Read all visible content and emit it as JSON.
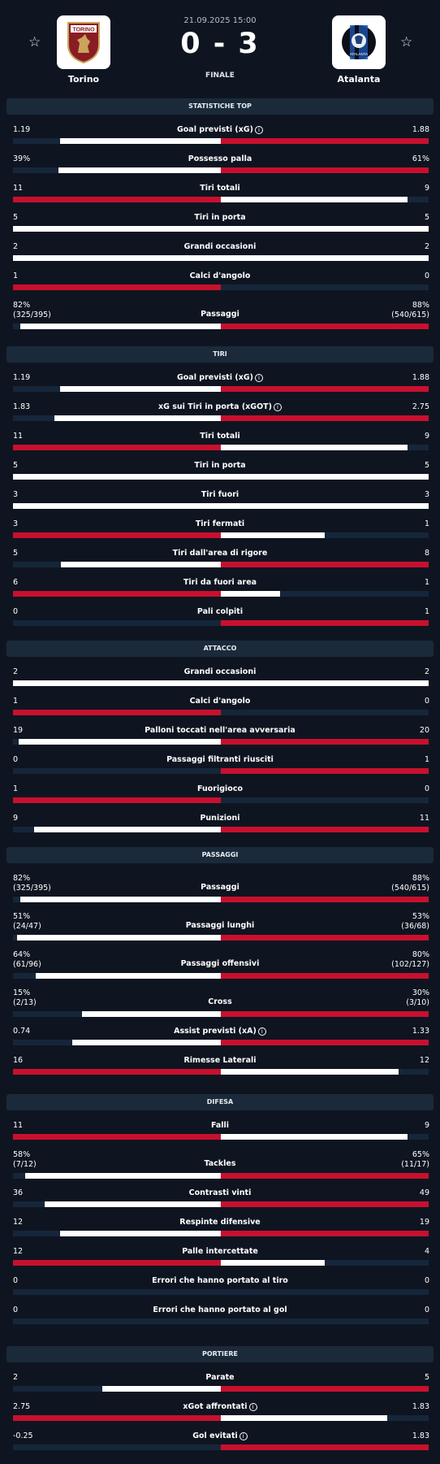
{
  "match": {
    "date": "21.09.2025 15:00",
    "score": "0 - 3",
    "status": "FINALE",
    "home": {
      "name": "Torino",
      "logo_text": "TORINO"
    },
    "away": {
      "name": "Atalanta",
      "logo_text": "ATALANTA"
    },
    "star_glyph": "☆"
  },
  "colors": {
    "white": "#ffffff",
    "red": "#c8102e",
    "track": "#16263a",
    "section": "#1b2a3a"
  },
  "sections": [
    {
      "title": "STATISTICHE TOP",
      "rows": [
        {
          "label": "Goal previsti (xG)",
          "info": true,
          "home": "1.19",
          "away": "1.88",
          "hv": 1.19,
          "av": 1.88
        },
        {
          "label": "Possesso palla",
          "home": "39%",
          "away": "61%",
          "hv": 39,
          "av": 61
        },
        {
          "label": "Tiri totali",
          "home": "11",
          "away": "9",
          "hv": 11,
          "av": 9
        },
        {
          "label": "Tiri in porta",
          "home": "5",
          "away": "5",
          "hv": 5,
          "av": 5
        },
        {
          "label": "Grandi occasioni",
          "home": "2",
          "away": "2",
          "hv": 2,
          "av": 2
        },
        {
          "label": "Calci d'angolo",
          "home": "1",
          "away": "0",
          "hv": 1,
          "av": 0
        },
        {
          "label": "Passaggi",
          "home": "82%",
          "home_sub": "(325/395)",
          "away": "88%",
          "away_sub": "(540/615)",
          "hv": 82,
          "av": 88
        }
      ]
    },
    {
      "title": "TIRI",
      "rows": [
        {
          "label": "Goal previsti (xG)",
          "info": true,
          "home": "1.19",
          "away": "1.88",
          "hv": 1.19,
          "av": 1.88
        },
        {
          "label": "xG sui Tiri in porta (xGOT)",
          "info": true,
          "home": "1.83",
          "away": "2.75",
          "hv": 1.83,
          "av": 2.75
        },
        {
          "label": "Tiri totali",
          "home": "11",
          "away": "9",
          "hv": 11,
          "av": 9
        },
        {
          "label": "Tiri in porta",
          "home": "5",
          "away": "5",
          "hv": 5,
          "av": 5
        },
        {
          "label": "Tiri fuori",
          "home": "3",
          "away": "3",
          "hv": 3,
          "av": 3
        },
        {
          "label": "Tiri fermati",
          "home": "3",
          "away": "1",
          "hv": 3,
          "av": 1
        },
        {
          "label": "Tiri dall'area di rigore",
          "home": "5",
          "away": "8",
          "hv": 5,
          "av": 8
        },
        {
          "label": "Tiri da fuori area",
          "home": "6",
          "away": "1",
          "hv": 6,
          "av": 1
        },
        {
          "label": "Pali colpiti",
          "home": "0",
          "away": "1",
          "hv": 0,
          "av": 1
        }
      ]
    },
    {
      "title": "ATTACCO",
      "rows": [
        {
          "label": "Grandi occasioni",
          "home": "2",
          "away": "2",
          "hv": 2,
          "av": 2
        },
        {
          "label": "Calci d'angolo",
          "home": "1",
          "away": "0",
          "hv": 1,
          "av": 0
        },
        {
          "label": "Palloni toccati nell'area avversaria",
          "home": "19",
          "away": "20",
          "hv": 19,
          "av": 20
        },
        {
          "label": "Passaggi filtranti riusciti",
          "home": "0",
          "away": "1",
          "hv": 0,
          "av": 1
        },
        {
          "label": "Fuorigioco",
          "home": "1",
          "away": "0",
          "hv": 1,
          "av": 0
        },
        {
          "label": "Punizioni",
          "home": "9",
          "away": "11",
          "hv": 9,
          "av": 11
        }
      ]
    },
    {
      "title": "PASSAGGI",
      "rows": [
        {
          "label": "Passaggi",
          "home": "82%",
          "home_sub": "(325/395)",
          "away": "88%",
          "away_sub": "(540/615)",
          "hv": 82,
          "av": 88
        },
        {
          "label": "Passaggi lunghi",
          "home": "51%",
          "home_sub": "(24/47)",
          "away": "53%",
          "away_sub": "(36/68)",
          "hv": 51,
          "av": 53
        },
        {
          "label": "Passaggi offensivi",
          "home": "64%",
          "home_sub": "(61/96)",
          "away": "80%",
          "away_sub": "(102/127)",
          "hv": 64,
          "av": 80
        },
        {
          "label": "Cross",
          "home": "15%",
          "home_sub": "(2/13)",
          "away": "30%",
          "away_sub": "(3/10)",
          "hv": 15,
          "av": 30
        },
        {
          "label": "Assist previsti (xA)",
          "info": true,
          "home": "0.74",
          "away": "1.33",
          "hv": 0.74,
          "av": 1.33
        },
        {
          "label": "Rimesse Laterali",
          "home": "16",
          "away": "12",
          "hv": 16,
          "av": 12
        }
      ]
    },
    {
      "title": "DIFESA",
      "rows": [
        {
          "label": "Falli",
          "home": "11",
          "away": "9",
          "hv": 11,
          "av": 9
        },
        {
          "label": "Tackles",
          "home": "58%",
          "home_sub": "(7/12)",
          "away": "65%",
          "away_sub": "(11/17)",
          "hv": 58,
          "av": 65
        },
        {
          "label": "Contrasti vinti",
          "home": "36",
          "away": "49",
          "hv": 36,
          "av": 49
        },
        {
          "label": "Respinte difensive",
          "home": "12",
          "away": "19",
          "hv": 12,
          "av": 19
        },
        {
          "label": "Palle intercettate",
          "home": "12",
          "away": "4",
          "hv": 12,
          "av": 4
        },
        {
          "label": "Errori che hanno portato al tiro",
          "home": "0",
          "away": "0",
          "hv": 0,
          "av": 0
        },
        {
          "label": "Errori che hanno portato al gol",
          "home": "0",
          "away": "0",
          "hv": 0,
          "av": 0
        }
      ]
    },
    {
      "title": "PORTIERE",
      "rows": [
        {
          "label": "Parate",
          "home": "2",
          "away": "5",
          "hv": 2,
          "av": 5
        },
        {
          "label": "xGot affrontati",
          "info": true,
          "home": "2.75",
          "away": "1.83",
          "hv": 2.75,
          "av": 1.83
        },
        {
          "label": "Gol evitati",
          "info": true,
          "home": "-0.25",
          "away": "1.83",
          "hv": -0.25,
          "av": 1.83
        }
      ]
    }
  ]
}
